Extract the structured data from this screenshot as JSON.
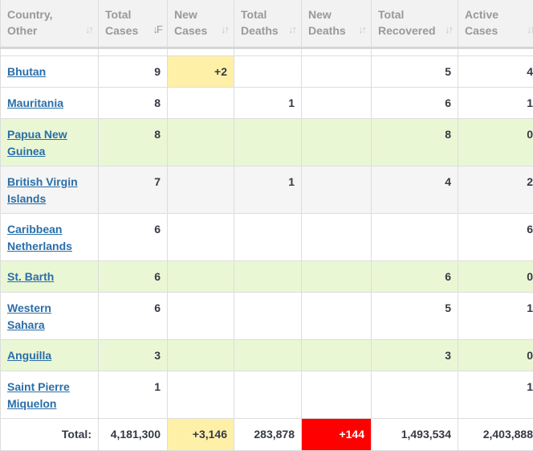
{
  "headers": [
    {
      "line1": "Country,",
      "line2": "Other"
    },
    {
      "line1": "Total",
      "line2": "Cases"
    },
    {
      "line1": "New",
      "line2": "Cases"
    },
    {
      "line1": "Total",
      "line2": "Deaths"
    },
    {
      "line1": "New",
      "line2": "Deaths"
    },
    {
      "line1": "Total",
      "line2": "Recovered"
    },
    {
      "line1": "Active",
      "line2": "Cases"
    }
  ],
  "sort_icons": {
    "inactive": "↓↑",
    "active": "↓F"
  },
  "rows": [
    {
      "country": "Bhutan",
      "total_cases": "9",
      "new_cases": "+2",
      "total_deaths": "",
      "new_deaths": "",
      "total_recovered": "5",
      "active_cases": "4"
    },
    {
      "country": "Mauritania",
      "total_cases": "8",
      "new_cases": "",
      "total_deaths": "1",
      "new_deaths": "",
      "total_recovered": "6",
      "active_cases": "1"
    },
    {
      "country": "Papua New Guinea",
      "total_cases": "8",
      "new_cases": "",
      "total_deaths": "",
      "new_deaths": "",
      "total_recovered": "8",
      "active_cases": "0"
    },
    {
      "country": "British Virgin Islands",
      "total_cases": "7",
      "new_cases": "",
      "total_deaths": "1",
      "new_deaths": "",
      "total_recovered": "4",
      "active_cases": "2"
    },
    {
      "country": "Caribbean Netherlands",
      "total_cases": "6",
      "new_cases": "",
      "total_deaths": "",
      "new_deaths": "",
      "total_recovered": "",
      "active_cases": "6"
    },
    {
      "country": "St. Barth",
      "total_cases": "6",
      "new_cases": "",
      "total_deaths": "",
      "new_deaths": "",
      "total_recovered": "6",
      "active_cases": "0"
    },
    {
      "country": "Western Sahara",
      "total_cases": "6",
      "new_cases": "",
      "total_deaths": "",
      "new_deaths": "",
      "total_recovered": "5",
      "active_cases": "1"
    },
    {
      "country": "Anguilla",
      "total_cases": "3",
      "new_cases": "",
      "total_deaths": "",
      "new_deaths": "",
      "total_recovered": "3",
      "active_cases": "0"
    },
    {
      "country": "Saint Pierre Miquelon",
      "total_cases": "1",
      "new_cases": "",
      "total_deaths": "",
      "new_deaths": "",
      "total_recovered": "",
      "active_cases": "1"
    }
  ],
  "totals": {
    "label": "Total:",
    "total_cases": "4,181,300",
    "new_cases": "+3,146",
    "total_deaths": "283,878",
    "new_deaths": "+144",
    "total_recovered": "1,493,534",
    "active_cases": "2,403,888"
  },
  "colors": {
    "recovered_row_bg": "#eaf7d5",
    "alt_row_bg": "#f5f5f5",
    "new_cases_highlight": "#fff0a8",
    "new_deaths_highlight": "#ff0000",
    "link": "#2a6ea8"
  }
}
